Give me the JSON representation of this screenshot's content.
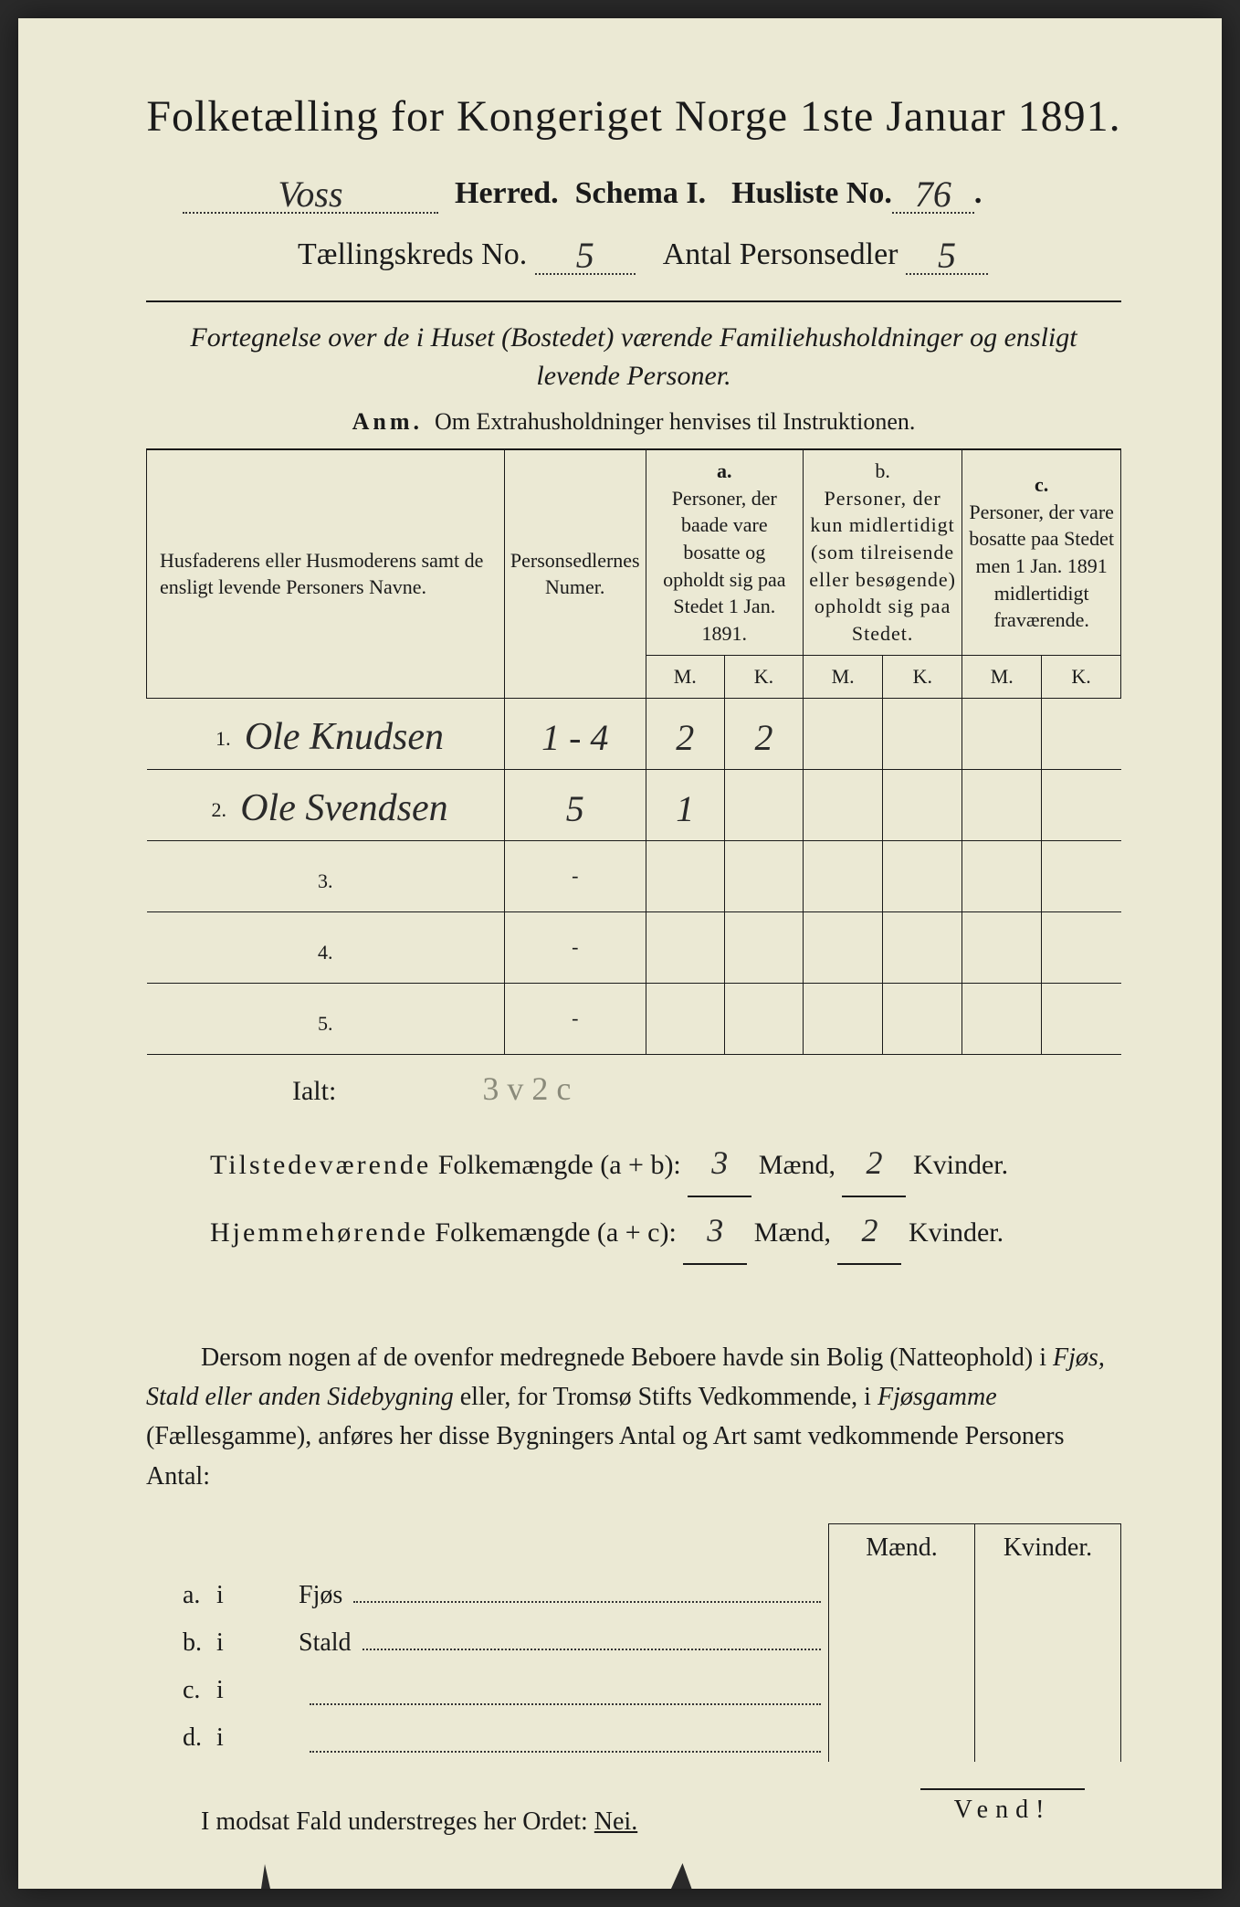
{
  "title": "Folketælling for Kongeriget Norge 1ste Januar 1891.",
  "header": {
    "herred_value": "Voss",
    "herred_label": "Herred.",
    "schema_label": "Schema I.",
    "husliste_label": "Husliste No.",
    "husliste_value": "76",
    "kreds_label": "Tællingskreds No.",
    "kreds_value": "5",
    "antal_label": "Antal Personsedler",
    "antal_value": "5"
  },
  "subtitle": "Fortegnelse over de i Huset (Bostedet) værende Familiehusholdninger og ensligt levende Personer.",
  "anm_label": "Anm.",
  "anm_text": "Om Extrahusholdninger henvises til Instruktionen.",
  "table": {
    "col1": "Husfaderens eller Husmoderens samt de ensligt levende Personers Navne.",
    "col2": "Personsedlernes Numer.",
    "col_a_label": "a.",
    "col_a": "Personer, der baade vare bosatte og opholdt sig paa Stedet 1 Jan. 1891.",
    "col_b_label": "b.",
    "col_b": "Personer, der kun midlertidigt (som tilreisende eller besøgende) opholdt sig paa Stedet.",
    "col_c_label": "c.",
    "col_c": "Personer, der vare bosatte paa Stedet men 1 Jan. 1891 midlertidigt fraværende.",
    "m": "M.",
    "k": "K.",
    "rows": [
      {
        "n": "1.",
        "name": "Ole Knudsen",
        "num": "1 - 4",
        "am": "2",
        "ak": "2",
        "bm": "",
        "bk": "",
        "cm": "",
        "ck": ""
      },
      {
        "n": "2.",
        "name": "Ole Svendsen",
        "num": "5",
        "am": "1",
        "ak": "",
        "bm": "",
        "bk": "",
        "cm": "",
        "ck": ""
      },
      {
        "n": "3.",
        "name": "",
        "num": "-",
        "am": "",
        "ak": "",
        "bm": "",
        "bk": "",
        "cm": "",
        "ck": ""
      },
      {
        "n": "4.",
        "name": "",
        "num": "-",
        "am": "",
        "ak": "",
        "bm": "",
        "bk": "",
        "cm": "",
        "ck": ""
      },
      {
        "n": "5.",
        "name": "",
        "num": "-",
        "am": "",
        "ak": "",
        "bm": "",
        "bk": "",
        "cm": "",
        "ck": ""
      }
    ]
  },
  "ialt_label": "Ialt:",
  "ialt_faint": "3 v   2 c",
  "summary": {
    "line1_a": "Tilstedeværende",
    "line1_b": "Folkemængde (a + b):",
    "line1_m": "3",
    "line1_k": "2",
    "line2_a": "Hjemmehørende",
    "line2_b": "Folkemængde (a + c):",
    "line2_m": "3",
    "line2_k": "2",
    "maend": "Mænd,",
    "kvinder": "Kvinder."
  },
  "para": "Dersom nogen af de ovenfor medregnede Beboere havde sin Bolig (Natteophold) i Fjøs, Stald eller anden Sidebygning eller, for Tromsø Stifts Vedkommende, i Fjøsgamme (Fællesgamme), anføres her disse Bygningers Antal og Art samt vedkommende Personers Antal:",
  "btm": {
    "maend": "Mænd.",
    "kvinder": "Kvinder.",
    "rows": [
      {
        "a": "a.",
        "i": "i",
        "lbl": "Fjøs"
      },
      {
        "a": "b.",
        "i": "i",
        "lbl": "Stald"
      },
      {
        "a": "c.",
        "i": "i",
        "lbl": ""
      },
      {
        "a": "d.",
        "i": "i",
        "lbl": ""
      }
    ]
  },
  "nei_line_a": "I modsat Fald understreges her Ordet:",
  "nei": "Nei.",
  "vend": "Vend!",
  "colors": {
    "paper": "#ebe9d4",
    "ink": "#1a1a1a",
    "faint": "#8a8a7a",
    "bg": "#2a2a2a"
  }
}
